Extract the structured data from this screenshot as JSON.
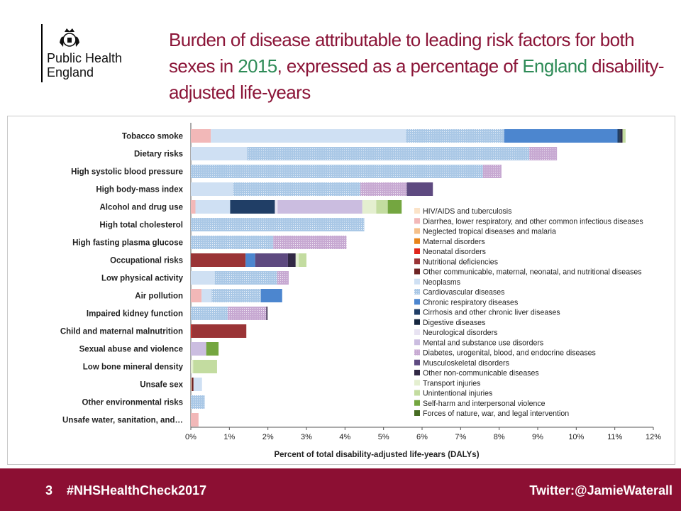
{
  "logo": {
    "org_line1": "Public Health",
    "org_line2": "England"
  },
  "title": {
    "part1": "Burden of disease attributable to leading risk factors for both sexes in ",
    "year": "2015",
    "part2": ", expressed as a percentage of ",
    "country": "England",
    "part3": " disability-adjusted life-years"
  },
  "footer": {
    "page": "3",
    "hashtag": "#NHSHealthCheck2017",
    "twitter": "Twitter:@JamieWaterall"
  },
  "chart_data": {
    "type": "bar",
    "orientation": "horizontal",
    "stacked": true,
    "xlabel": "Percent of total disability-adjusted life-years (DALYs)",
    "ylabel": "",
    "xlim": [
      0,
      12
    ],
    "xticks": [
      "0%",
      "1%",
      "2%",
      "3%",
      "4%",
      "5%",
      "6%",
      "7%",
      "8%",
      "9%",
      "10%",
      "11%",
      "12%"
    ],
    "legend_position": "right",
    "categories": [
      "Tobacco smoke",
      "Dietary risks",
      "High systolic blood pressure",
      "High body-mass index",
      "Alcohol and drug use",
      "High total cholesterol",
      "High fasting plasma glucose",
      "Occupational risks",
      "Low physical activity",
      "Air pollution",
      "Impaired kidney function",
      "Child and maternal malnutrition",
      "Sexual abuse and violence",
      "Low bone mineral density",
      "Unsafe sex",
      "Other environmental risks",
      "Unsafe water, sanitation, and…"
    ],
    "series": [
      {
        "name": "HIV/AIDS and tuberculosis",
        "color": "#fbe3c8",
        "pattern": false,
        "values": [
          0,
          0,
          0,
          0,
          0,
          0,
          0,
          0,
          0,
          0,
          0,
          0,
          0,
          0,
          0.02,
          0,
          0
        ]
      },
      {
        "name": "Diarrhea, lower respiratory, and other common infectious diseases",
        "color": "#f2b8b8",
        "pattern": false,
        "values": [
          0.52,
          0,
          0,
          0,
          0.12,
          0,
          0,
          0,
          0,
          0.28,
          0,
          0,
          0,
          0,
          0,
          0,
          0.2
        ]
      },
      {
        "name": "Neglected tropical diseases and malaria",
        "color": "#f5c08a",
        "pattern": false,
        "values": [
          0,
          0,
          0,
          0,
          0,
          0,
          0,
          0,
          0,
          0,
          0,
          0,
          0,
          0,
          0,
          0,
          0
        ]
      },
      {
        "name": "Maternal disorders",
        "color": "#e8841a",
        "pattern": false,
        "values": [
          0,
          0,
          0,
          0,
          0,
          0,
          0,
          0,
          0,
          0,
          0,
          0,
          0,
          0,
          0,
          0,
          0
        ]
      },
      {
        "name": "Neonatal disorders",
        "color": "#e0251b",
        "pattern": false,
        "values": [
          0,
          0,
          0,
          0,
          0,
          0,
          0,
          0,
          0,
          0,
          0,
          0.02,
          0,
          0,
          0,
          0,
          0
        ]
      },
      {
        "name": "Nutritional deficiencies",
        "color": "#9a3436",
        "pattern": false,
        "values": [
          0,
          0,
          0,
          0,
          0,
          0,
          0,
          1.42,
          0,
          0,
          0,
          1.42,
          0,
          0,
          0,
          0,
          0
        ]
      },
      {
        "name": "Other communicable, maternal, neonatal, and nutritional diseases",
        "color": "#6e2424",
        "pattern": false,
        "values": [
          0,
          0,
          0,
          0,
          0,
          0,
          0,
          0,
          0,
          0,
          0,
          0,
          0,
          0,
          0.05,
          0,
          0
        ]
      },
      {
        "name": "Neoplasms",
        "color": "#cfe0f3",
        "pattern": false,
        "values": [
          5.06,
          1.46,
          0,
          1.1,
          0.9,
          0,
          0,
          0,
          0.62,
          0.26,
          0,
          0,
          0,
          0,
          0.22,
          0,
          0
        ]
      },
      {
        "name": "Cardiovascular diseases",
        "color": "#aac8e6",
        "pattern": true,
        "values": [
          2.55,
          7.32,
          7.58,
          3.3,
          0,
          4.5,
          2.14,
          0,
          1.62,
          1.28,
          0.96,
          0,
          0,
          0,
          0,
          0.36,
          0
        ]
      },
      {
        "name": "Chronic respiratory diseases",
        "color": "#4c86cf",
        "pattern": false,
        "values": [
          2.94,
          0,
          0,
          0,
          0,
          0,
          0,
          0.25,
          0,
          0.55,
          0,
          0,
          0,
          0,
          0,
          0,
          0
        ]
      },
      {
        "name": "Cirrhosis and other chronic liver diseases",
        "color": "#203e66",
        "pattern": false,
        "values": [
          0.05,
          0,
          0,
          0,
          1.16,
          0,
          0,
          0,
          0,
          0,
          0,
          0,
          0,
          0,
          0,
          0,
          0
        ]
      },
      {
        "name": "Digestive diseases",
        "color": "#16273f",
        "pattern": false,
        "values": [
          0.03,
          0,
          0,
          0,
          0,
          0,
          0,
          0,
          0,
          0,
          0,
          0,
          0,
          0,
          0,
          0,
          0
        ]
      },
      {
        "name": "Neurological disorders",
        "color": "#e8e3f2",
        "pattern": false,
        "values": [
          0,
          0,
          0,
          0,
          0.07,
          0,
          0,
          0,
          0,
          0,
          0,
          0,
          0,
          0,
          0,
          0,
          0
        ]
      },
      {
        "name": "Mental and substance use disorders",
        "color": "#cbbde0",
        "pattern": false,
        "values": [
          0,
          0,
          0,
          0,
          2.2,
          0,
          0,
          0,
          0,
          0,
          0,
          0,
          0.4,
          0,
          0,
          0,
          0
        ]
      },
      {
        "name": "Diabetes, urogenital, blood, and endocrine diseases",
        "color": "#c7a9d2",
        "pattern": true,
        "values": [
          0,
          0.72,
          0.48,
          1.2,
          0,
          0,
          1.9,
          0,
          0.3,
          0,
          1.0,
          0,
          0,
          0,
          0,
          0,
          0
        ]
      },
      {
        "name": "Musculoskeletal disorders",
        "color": "#5e4a80",
        "pattern": false,
        "values": [
          0,
          0,
          0,
          0.68,
          0,
          0,
          0,
          0.85,
          0,
          0,
          0,
          0,
          0,
          0,
          0,
          0,
          0
        ]
      },
      {
        "name": "Other non-communicable diseases",
        "color": "#312844",
        "pattern": false,
        "values": [
          0.05,
          0,
          0,
          0,
          0,
          0,
          0,
          0.2,
          0,
          0,
          0.03,
          0,
          0,
          0,
          0,
          0,
          0
        ]
      },
      {
        "name": "Transport injuries",
        "color": "#e4efd0",
        "pattern": false,
        "values": [
          0,
          0,
          0,
          0,
          0.36,
          0,
          0,
          0.08,
          0,
          0,
          0,
          0,
          0,
          0.06,
          0,
          0,
          0
        ]
      },
      {
        "name": "Unintentional injuries",
        "color": "#c3dca0",
        "pattern": false,
        "values": [
          0.08,
          0,
          0,
          0,
          0.3,
          0,
          0,
          0.2,
          0,
          0,
          0,
          0,
          0,
          0.62,
          0,
          0,
          0
        ]
      },
      {
        "name": "Self-harm and interpersonal violence",
        "color": "#74a640",
        "pattern": false,
        "values": [
          0,
          0,
          0,
          0,
          0.36,
          0,
          0,
          0,
          0,
          0,
          0,
          0,
          0.32,
          0,
          0,
          0,
          0
        ]
      },
      {
        "name": "Forces of nature, war, and legal intervention",
        "color": "#466b22",
        "pattern": false,
        "values": [
          0,
          0,
          0,
          0,
          0,
          0,
          0,
          0,
          0,
          0,
          0,
          0,
          0,
          0,
          0,
          0,
          0
        ]
      }
    ]
  }
}
